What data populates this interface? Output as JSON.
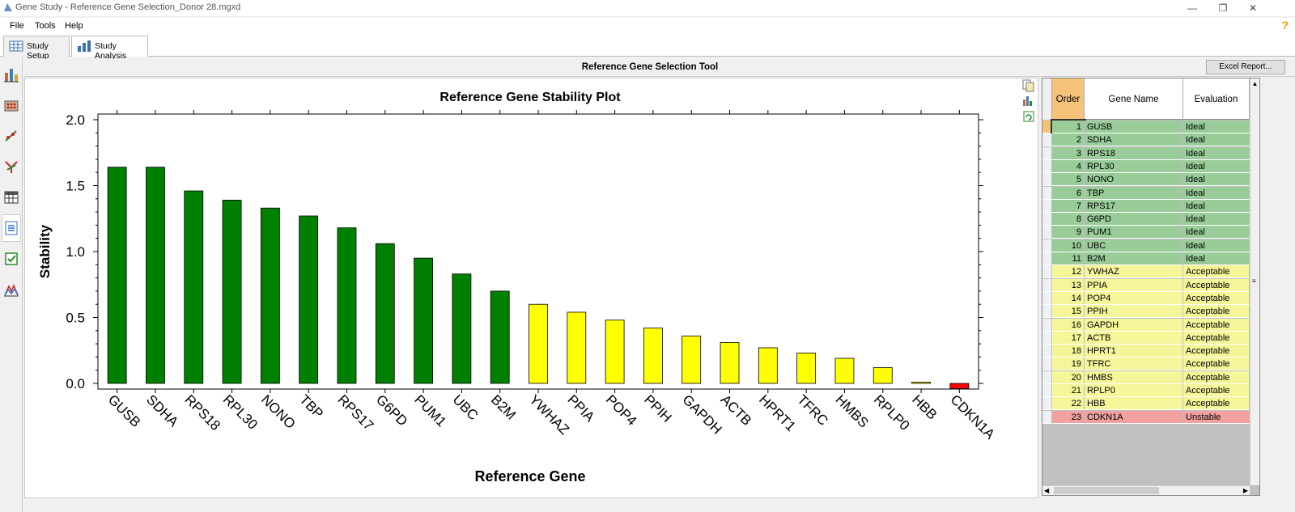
{
  "window": {
    "title": "Gene Study - Reference Gene Selection_Donor 28.mgxd",
    "app_icon": "app-logo-icon",
    "controls": [
      "—",
      "❐",
      "✕"
    ]
  },
  "menu": {
    "items": [
      "File",
      "Tools",
      "Help"
    ],
    "help_glyph": "?"
  },
  "tabs": [
    {
      "label": "Study Setup",
      "icon": "grid-icon",
      "active": false
    },
    {
      "label": "Study Analysis",
      "icon": "bar-chart-icon",
      "active": true
    }
  ],
  "sidebar": {
    "icons": [
      "bar-chart-icon",
      "dna-plate-icon",
      "dots-plot-icon",
      "branch-icon",
      "table-icon",
      "document-icon",
      "checkbox-icon",
      "mountain-chart-icon"
    ],
    "active_index": 5
  },
  "tool": {
    "title": "Reference Gene Selection Tool",
    "excel_button": "Excel Report..."
  },
  "chart_tools": [
    "copy-icon",
    "chart-settings-icon",
    "refresh-icon"
  ],
  "chart_data": {
    "type": "bar",
    "title": "Reference Gene Stability Plot",
    "xlabel": "Reference Gene",
    "ylabel": "Stability",
    "ylim": [
      0.0,
      2.0
    ],
    "yticks": [
      "0.0",
      "0.5",
      "1.0",
      "1.5",
      "2.0"
    ],
    "categories": [
      "GUSB",
      "SDHA",
      "RPS18",
      "RPL30",
      "NONO",
      "TBP",
      "RPS17",
      "G6PD",
      "PUM1",
      "UBC",
      "B2M",
      "YWHAZ",
      "PPIA",
      "POP4",
      "PPIH",
      "GAPDH",
      "ACTB",
      "HPRT1",
      "TFRC",
      "HMBS",
      "RPLP0",
      "HBB",
      "CDKN1A"
    ],
    "values": [
      1.64,
      1.64,
      1.46,
      1.39,
      1.33,
      1.27,
      1.18,
      1.06,
      0.95,
      0.83,
      0.7,
      0.6,
      0.54,
      0.48,
      0.42,
      0.36,
      0.31,
      0.27,
      0.23,
      0.19,
      0.12,
      0.01,
      -0.04
    ],
    "bar_colors": [
      "#008000",
      "#008000",
      "#008000",
      "#008000",
      "#008000",
      "#008000",
      "#008000",
      "#008000",
      "#008000",
      "#008000",
      "#008000",
      "#ffff00",
      "#ffff00",
      "#ffff00",
      "#ffff00",
      "#ffff00",
      "#ffff00",
      "#ffff00",
      "#ffff00",
      "#ffff00",
      "#ffff00",
      "#ffff00",
      "#ff0000"
    ],
    "grid": false,
    "legend": "none"
  },
  "table": {
    "headers": [
      "Order",
      "Gene Name",
      "Evaluation"
    ],
    "rows": [
      {
        "order": "1",
        "gene": "GUSB",
        "eval": "Ideal"
      },
      {
        "order": "2",
        "gene": "SDHA",
        "eval": "Ideal"
      },
      {
        "order": "3",
        "gene": "RPS18",
        "eval": "Ideal"
      },
      {
        "order": "4",
        "gene": "RPL30",
        "eval": "Ideal"
      },
      {
        "order": "5",
        "gene": "NONO",
        "eval": "Ideal"
      },
      {
        "order": "6",
        "gene": "TBP",
        "eval": "Ideal"
      },
      {
        "order": "7",
        "gene": "RPS17",
        "eval": "Ideal"
      },
      {
        "order": "8",
        "gene": "G6PD",
        "eval": "Ideal"
      },
      {
        "order": "9",
        "gene": "PUM1",
        "eval": "Ideal"
      },
      {
        "order": "10",
        "gene": "UBC",
        "eval": "Ideal"
      },
      {
        "order": "11",
        "gene": "B2M",
        "eval": "Ideal"
      },
      {
        "order": "12",
        "gene": "YWHAZ",
        "eval": "Acceptable"
      },
      {
        "order": "13",
        "gene": "PPIA",
        "eval": "Acceptable"
      },
      {
        "order": "14",
        "gene": "POP4",
        "eval": "Acceptable"
      },
      {
        "order": "15",
        "gene": "PPIH",
        "eval": "Acceptable"
      },
      {
        "order": "16",
        "gene": "GAPDH",
        "eval": "Acceptable"
      },
      {
        "order": "17",
        "gene": "ACTB",
        "eval": "Acceptable"
      },
      {
        "order": "18",
        "gene": "HPRT1",
        "eval": "Acceptable"
      },
      {
        "order": "19",
        "gene": "TFRC",
        "eval": "Acceptable"
      },
      {
        "order": "20",
        "gene": "HMBS",
        "eval": "Acceptable"
      },
      {
        "order": "21",
        "gene": "RPLP0",
        "eval": "Acceptable"
      },
      {
        "order": "22",
        "gene": "HBB",
        "eval": "Acceptable"
      },
      {
        "order": "23",
        "gene": "CDKN1A",
        "eval": "Unstable"
      }
    ],
    "eval_colors": {
      "Ideal": "#99cc99",
      "Acceptable": "#f5f59a",
      "Unstable": "#f2a0a0"
    },
    "selected_row": 0
  }
}
